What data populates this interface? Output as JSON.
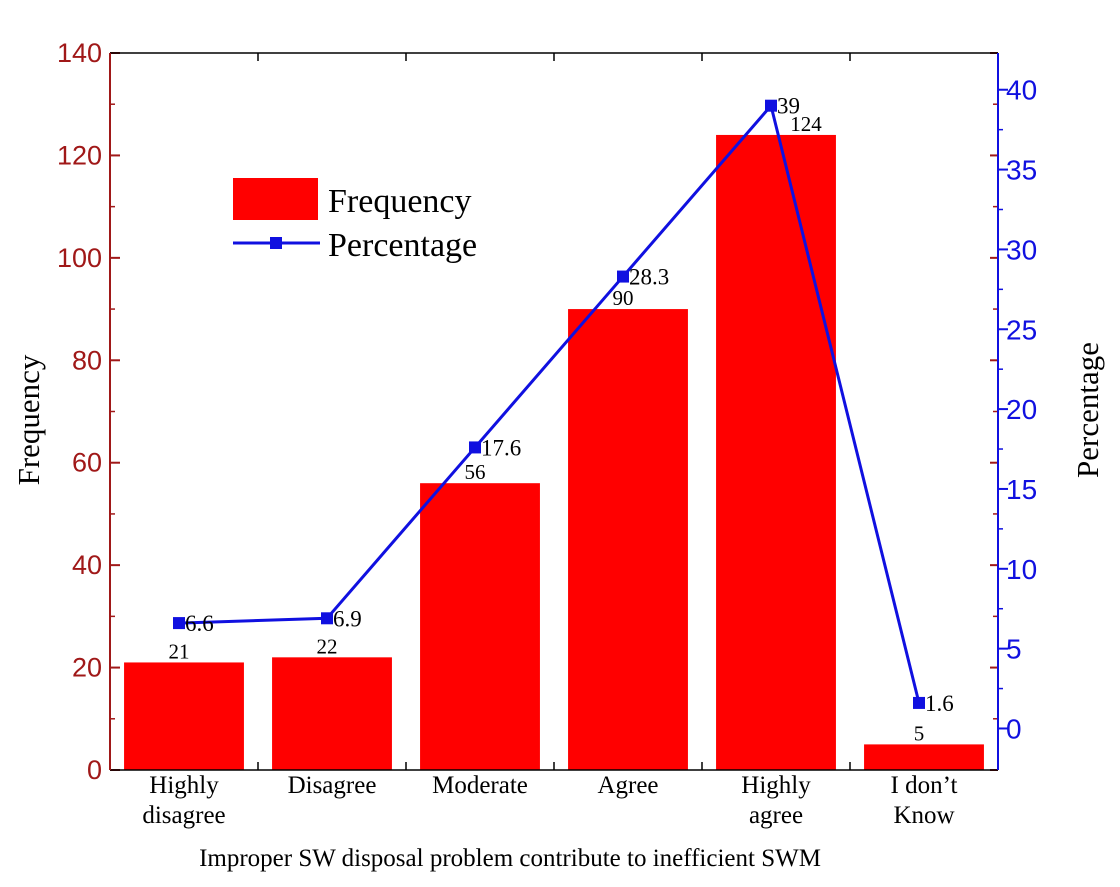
{
  "chart_data": {
    "type": "bar",
    "xlabel": "Improper SW disposal problem contribute to inefficient SWM",
    "ylabel": "Frequency",
    "y2label": "Percentage",
    "categories": [
      [
        "Highly",
        "disagree"
      ],
      [
        "Disagree"
      ],
      [
        "Moderate"
      ],
      [
        "Agree"
      ],
      [
        "Highly",
        "agree"
      ],
      [
        "I don’t",
        "Know"
      ]
    ],
    "series": [
      {
        "name": "Frequency",
        "kind": "bar",
        "axis": "left",
        "color": "#ff0000",
        "values": [
          21,
          22,
          56,
          90,
          124,
          5
        ],
        "labels": [
          "21",
          "22",
          "56",
          "90",
          "124",
          "5"
        ]
      },
      {
        "name": "Percentage",
        "kind": "line",
        "axis": "right",
        "color": "#1010e0",
        "values": [
          6.6,
          6.9,
          17.6,
          28.3,
          39,
          1.6
        ],
        "labels": [
          "6.6",
          "6.9",
          "17.6",
          "28.3",
          "39",
          "1.6"
        ]
      }
    ],
    "ylim": [
      0,
      140
    ],
    "yticks": [
      0,
      20,
      40,
      60,
      80,
      100,
      120,
      140
    ],
    "y2lim": [
      -2.6,
      42.3
    ],
    "y2ticks": [
      0,
      5,
      10,
      15,
      20,
      25,
      30,
      35,
      40
    ],
    "legend": [
      "Frequency",
      "Percentage"
    ],
    "legend_position": "top-left",
    "left_axis_color": "#a01818",
    "right_axis_color": "#1010e0"
  }
}
